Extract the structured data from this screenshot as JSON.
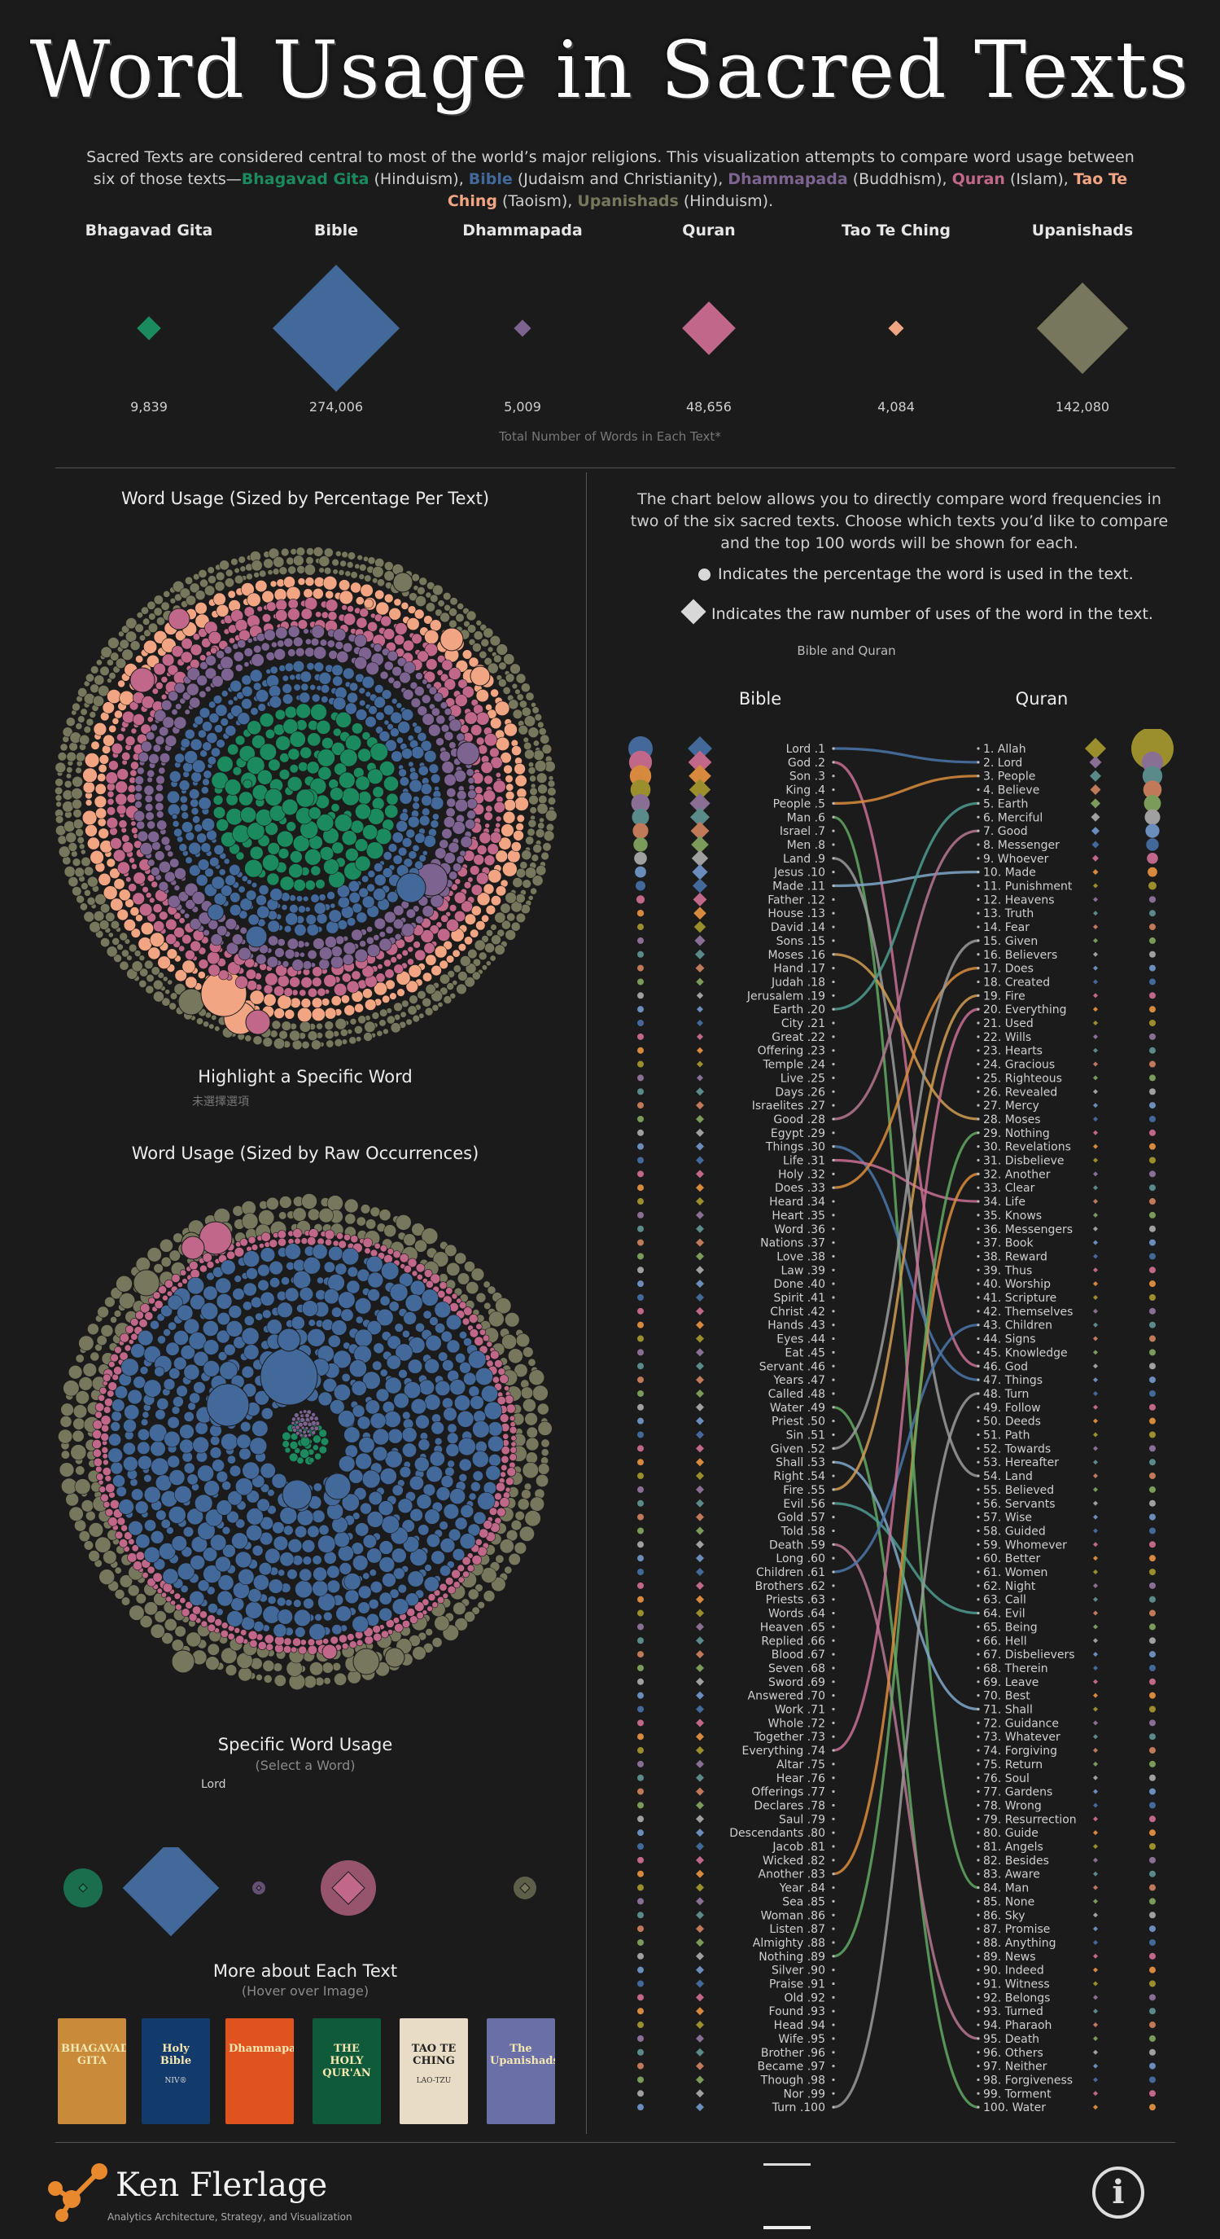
{
  "header": {
    "title": "Word Usage in Sacred Texts",
    "intro_prefix": "Sacred Texts are considered central to most of the world’s major religions. This visualization attempts to compare word usage between six of those texts—",
    "intro_parts": [
      {
        "name": "Bhagavad Gita",
        "note": " (Hinduism), "
      },
      {
        "name": "Bible",
        "note": " (Judaism and Christianity), "
      },
      {
        "name": "Dhammapada",
        "note": " (Buddhism), "
      },
      {
        "name": "Quran",
        "note": " (Islam), "
      },
      {
        "name": "Tao Te Ching",
        "note": " (Taoism), "
      },
      {
        "name": "Upanishads",
        "note": ""
      }
    ],
    "intro_suffix": " (Hinduism)."
  },
  "colors": {
    "Bhagavad Gita": "#1b8a5f",
    "Bible": "#43699a",
    "Dhammapada": "#7d6390",
    "Quran": "#c1688a",
    "Tao Te Ching": "#f2a583",
    "Upanishads": "#76775c"
  },
  "totals": {
    "caption": "Total Number of Words in Each Text*",
    "texts": [
      {
        "name": "Bhagavad Gita",
        "count": 9839,
        "count_label": "9,839"
      },
      {
        "name": "Bible",
        "count": 274006,
        "count_label": "274,006"
      },
      {
        "name": "Dhammapada",
        "count": 5009,
        "count_label": "5,009"
      },
      {
        "name": "Quran",
        "count": 48656,
        "count_label": "48,656"
      },
      {
        "name": "Tao Te Ching",
        "count": 4084,
        "count_label": "4,084"
      },
      {
        "name": "Upanishads",
        "count": 142080,
        "count_label": "142,080"
      }
    ]
  },
  "left": {
    "pct_title": "Word Usage (Sized by Percentage Per Text)",
    "highlight_title": "Highlight a Specific Word",
    "highlight_hint": "未選擇選項",
    "raw_title": "Word Usage (Sized by Raw Occurrences)",
    "specific_title": "Specific Word Usage",
    "specific_hint": "(Select a Word)",
    "specific_word": "Lord",
    "more_title": "More about Each Text",
    "more_hint": "(Hover over Image)"
  },
  "books": [
    {
      "name": "Bhagavad Gita",
      "cover": "BHAGAVAD GITA",
      "bg": "#c98a3a"
    },
    {
      "name": "Bible",
      "cover": "Holy Bible",
      "sub": "NIV®",
      "bg": "#123a6a"
    },
    {
      "name": "Dhammapada",
      "cover": "Dhammapada",
      "bg": "#e0531f"
    },
    {
      "name": "Quran",
      "cover": "THE HOLY QUR'AN",
      "bg": "#0f5a3a"
    },
    {
      "name": "Tao Te Ching",
      "cover": "TAO TE CHING",
      "sub": "LAO-TZU",
      "bg": "#e9dcc6"
    },
    {
      "name": "Upanishads",
      "cover": "The Upanishads",
      "bg": "#6b6fa8"
    }
  ],
  "compare": {
    "description": "The chart below allows you to directly compare word frequencies in two of the six sacred texts. Choose which texts you’d like to compare and the top 100 words will be shown for each.",
    "legend_circle": "Indicates the percentage the word is used in the text.",
    "legend_diamond": "Indicates the raw number of uses of the word in the text.",
    "selection": "Bible and Quran",
    "left_text": "Bible",
    "right_text": "Quran"
  },
  "footer": {
    "brand": "Ken Flerlage",
    "tagline": "Analytics Architecture, Strategy, and Visualization",
    "info_icon": "info-icon",
    "logo_icon": "network-logo-icon"
  },
  "chart_data": [
    {
      "type": "bar",
      "title": "Total Number of Words in Each Text*",
      "categories": [
        "Bhagavad Gita",
        "Bible",
        "Dhammapada",
        "Quran",
        "Tao Te Ching",
        "Upanishads"
      ],
      "values": [
        9839,
        274006,
        5009,
        48656,
        4084,
        142080
      ]
    },
    {
      "type": "table",
      "title": "Bible and Quran",
      "bible_words": [
        "Lord",
        "God",
        "Son",
        "King",
        "People",
        "Man",
        "Israel",
        "Men",
        "Land",
        "Jesus",
        "Made",
        "Father",
        "House",
        "David",
        "Sons",
        "Moses",
        "Hand",
        "Judah",
        "Jerusalem",
        "Earth",
        "City",
        "Great",
        "Offering",
        "Temple",
        "Live",
        "Days",
        "Israelites",
        "Good",
        "Egypt",
        "Things",
        "Life",
        "Holy",
        "Does",
        "Heard",
        "Heart",
        "Word",
        "Nations",
        "Love",
        "Law",
        "Done",
        "Spirit",
        "Christ",
        "Hands",
        "Eyes",
        "Eat",
        "Servant",
        "Years",
        "Called",
        "Water",
        "Priest",
        "Sin",
        "Given",
        "Shall",
        "Right",
        "Fire",
        "Evil",
        "Gold",
        "Told",
        "Death",
        "Long",
        "Children",
        "Brothers",
        "Priests",
        "Words",
        "Heaven",
        "Replied",
        "Blood",
        "Seven",
        "Sword",
        "Answered",
        "Work",
        "Whole",
        "Together",
        "Everything",
        "Altar",
        "Hear",
        "Offerings",
        "Declares",
        "Saul",
        "Descendants",
        "Jacob",
        "Wicked",
        "Another",
        "Year",
        "Sea",
        "Woman",
        "Listen",
        "Almighty",
        "Nothing",
        "Silver",
        "Praise",
        "Old",
        "Found",
        "Head",
        "Wife",
        "Brother",
        "Became",
        "Though",
        "Nor",
        "Turn"
      ],
      "quran_words": [
        "Allah",
        "Lord",
        "People",
        "Believe",
        "Earth",
        "Merciful",
        "Good",
        "Messenger",
        "Whoever",
        "Made",
        "Punishment",
        "Heavens",
        "Truth",
        "Fear",
        "Given",
        "Believers",
        "Does",
        "Created",
        "Fire",
        "Everything",
        "Used",
        "Wills",
        "Hearts",
        "Gracious",
        "Righteous",
        "Revealed",
        "Mercy",
        "Moses",
        "Nothing",
        "Revelations",
        "Disbelieve",
        "Another",
        "Clear",
        "Life",
        "Knows",
        "Messengers",
        "Book",
        "Reward",
        "Thus",
        "Worship",
        "Scripture",
        "Themselves",
        "Children",
        "Signs",
        "Knowledge",
        "God",
        "Things",
        "Turn",
        "Follow",
        "Deeds",
        "Path",
        "Towards",
        "Hereafter",
        "Land",
        "Believed",
        "Servants",
        "Wise",
        "Guided",
        "Whomever",
        "Better",
        "Women",
        "Night",
        "Call",
        "Evil",
        "Being",
        "Hell",
        "Disbelievers",
        "Therein",
        "Leave",
        "Best",
        "Shall",
        "Guidance",
        "Whatever",
        "Forgiving",
        "Return",
        "Soul",
        "Gardens",
        "Wrong",
        "Resurrection",
        "Guide",
        "Angels",
        "Besides",
        "Aware",
        "Man",
        "None",
        "Sky",
        "Promise",
        "Anything",
        "News",
        "Indeed",
        "Witness",
        "Belongs",
        "Turned",
        "Pharaoh",
        "Death",
        "Others",
        "Neither",
        "Forgiveness",
        "Torment",
        "Water"
      ]
    }
  ]
}
